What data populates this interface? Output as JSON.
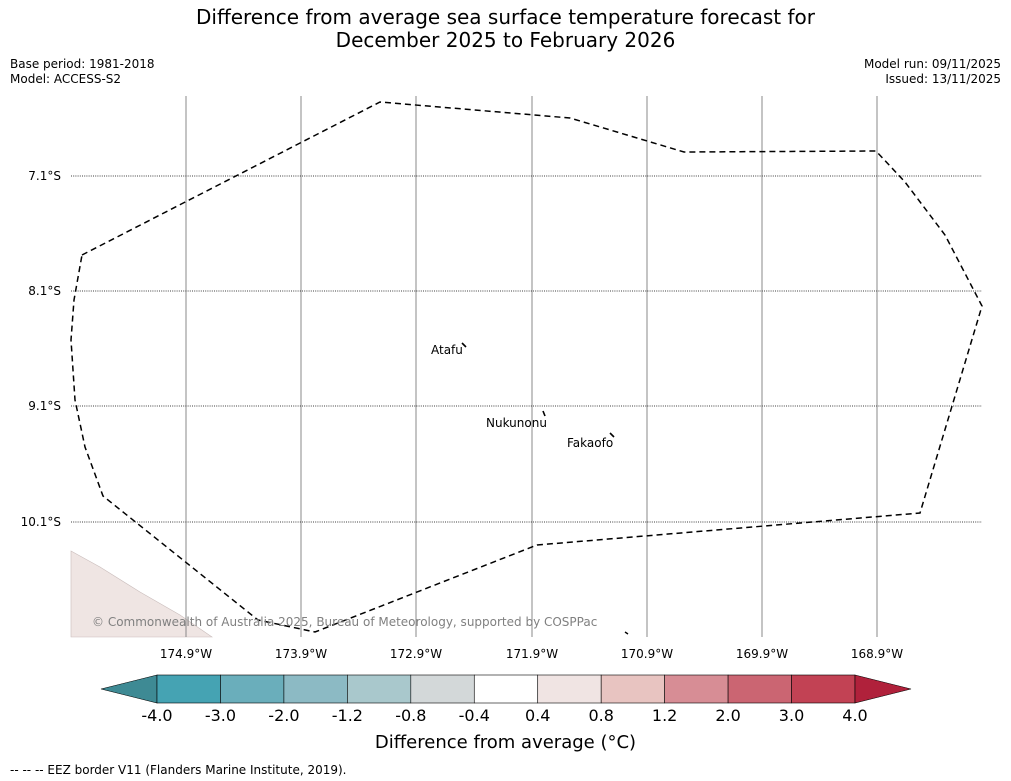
{
  "title_line1": "Difference from average sea surface temperature forecast for",
  "title_line2": "December 2025 to February 2026",
  "base_period": "Base period: 1981-2018",
  "model": "Model: ACCESS-S2",
  "model_run": "Model run: 09/11/2025",
  "issued": "Issued: 13/11/2025",
  "latitudes": [
    "7.1°S",
    "8.1°S",
    "9.1°S",
    "10.1°S"
  ],
  "longitudes": [
    "174.9°W",
    "173.9°W",
    "172.9°W",
    "171.9°W",
    "170.9°W",
    "169.9°W",
    "168.9°W"
  ],
  "places": [
    "Atafu",
    "Nukunonu",
    "Fakaofo"
  ],
  "copyright": "© Commonwealth of Australia 2025, Bureau of Meteorology, supported by COSPPac",
  "colorbar": {
    "ticks": [
      "-4.0",
      "-3.0",
      "-2.0",
      "-1.2",
      "-0.8",
      "-0.4",
      "0.4",
      "0.8",
      "1.2",
      "2.0",
      "3.0",
      "4.0"
    ],
    "colors": [
      "#3e8a94",
      "#45a3b3",
      "#6aaebb",
      "#8cbac4",
      "#a9c8cc",
      "#d3d8d9",
      "#ffffff",
      "#f0e4e3",
      "#e8c4c1",
      "#d78d95",
      "#cb6572",
      "#c24254",
      "#b0213b"
    ],
    "title": "Difference from average (°C)"
  },
  "legend_note": "--  --  -- EEZ border V11 (Flanders Marine Institute, 2019)."
}
